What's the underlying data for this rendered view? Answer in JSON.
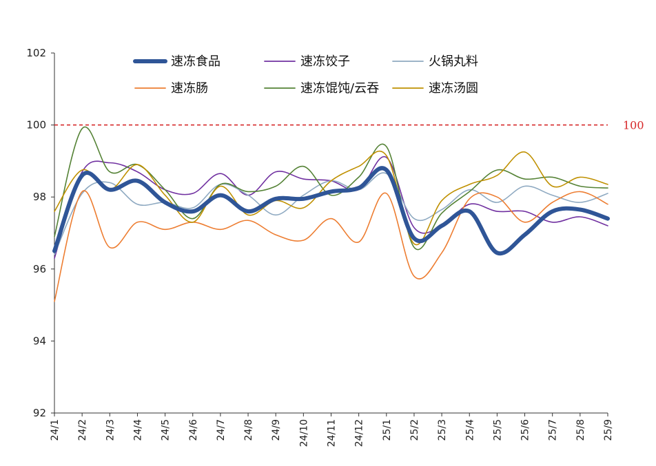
{
  "chart_data": {
    "type": "line",
    "title": "",
    "xlabel": "",
    "ylabel": "",
    "ylim": [
      92,
      102
    ],
    "yticks": [
      92,
      94,
      96,
      98,
      100,
      102
    ],
    "grid": false,
    "legend_position": "top",
    "categories": [
      "24/1",
      "24/2",
      "24/3",
      "24/4",
      "24/5",
      "24/6",
      "24/7",
      "24/8",
      "24/9",
      "24/10",
      "24/11",
      "24/12",
      "25/1",
      "25/2",
      "25/3",
      "25/4",
      "25/5",
      "25/6",
      "25/7",
      "25/8",
      "25/9"
    ],
    "reference_line": {
      "value": 100,
      "label": "100",
      "color": "#d62728"
    },
    "series": [
      {
        "name": "速冻食品",
        "color": "#2f5597",
        "values": [
          96.5,
          98.6,
          98.2,
          98.45,
          97.85,
          97.6,
          98.05,
          97.6,
          97.95,
          97.95,
          98.15,
          98.25,
          98.75,
          96.85,
          97.2,
          97.6,
          96.45,
          96.95,
          97.6,
          97.65,
          97.4
        ]
      },
      {
        "name": "速冻饺子",
        "color": "#7030a0",
        "values": [
          96.3,
          98.7,
          98.95,
          98.7,
          98.2,
          98.1,
          98.65,
          98.05,
          98.7,
          98.5,
          98.45,
          98.2,
          99.1,
          97.15,
          97.2,
          97.8,
          97.6,
          97.6,
          97.3,
          97.45,
          97.2
        ]
      },
      {
        "name": "火锅丸料",
        "color": "#8ea9c1",
        "values": [
          96.4,
          98.1,
          98.4,
          97.8,
          97.85,
          97.7,
          98.35,
          98.05,
          97.5,
          98.05,
          98.45,
          98.2,
          98.65,
          97.4,
          97.65,
          98.2,
          97.85,
          98.3,
          98.05,
          97.85,
          98.1
        ]
      },
      {
        "name": "速冻肠",
        "color": "#ed7d31",
        "values": [
          95.1,
          98.15,
          96.6,
          97.3,
          97.1,
          97.3,
          97.1,
          97.35,
          96.95,
          96.8,
          97.4,
          96.75,
          98.1,
          95.8,
          96.45,
          97.95,
          98.0,
          97.3,
          97.85,
          98.15,
          97.8
        ]
      },
      {
        "name": "速冻馄饨/云吞",
        "color": "#548235",
        "values": [
          96.9,
          99.9,
          98.7,
          98.9,
          98.2,
          97.4,
          98.35,
          98.15,
          98.3,
          98.85,
          98.05,
          98.55,
          99.4,
          96.6,
          97.55,
          98.15,
          98.75,
          98.5,
          98.55,
          98.3,
          98.25
        ]
      },
      {
        "name": "速冻汤圆",
        "color": "#bf9000",
        "values": [
          97.6,
          98.75,
          98.2,
          98.9,
          98.05,
          97.3,
          98.3,
          97.5,
          97.9,
          97.7,
          98.45,
          98.85,
          99.15,
          96.7,
          97.9,
          98.35,
          98.6,
          99.25,
          98.3,
          98.55,
          98.35
        ]
      }
    ]
  }
}
